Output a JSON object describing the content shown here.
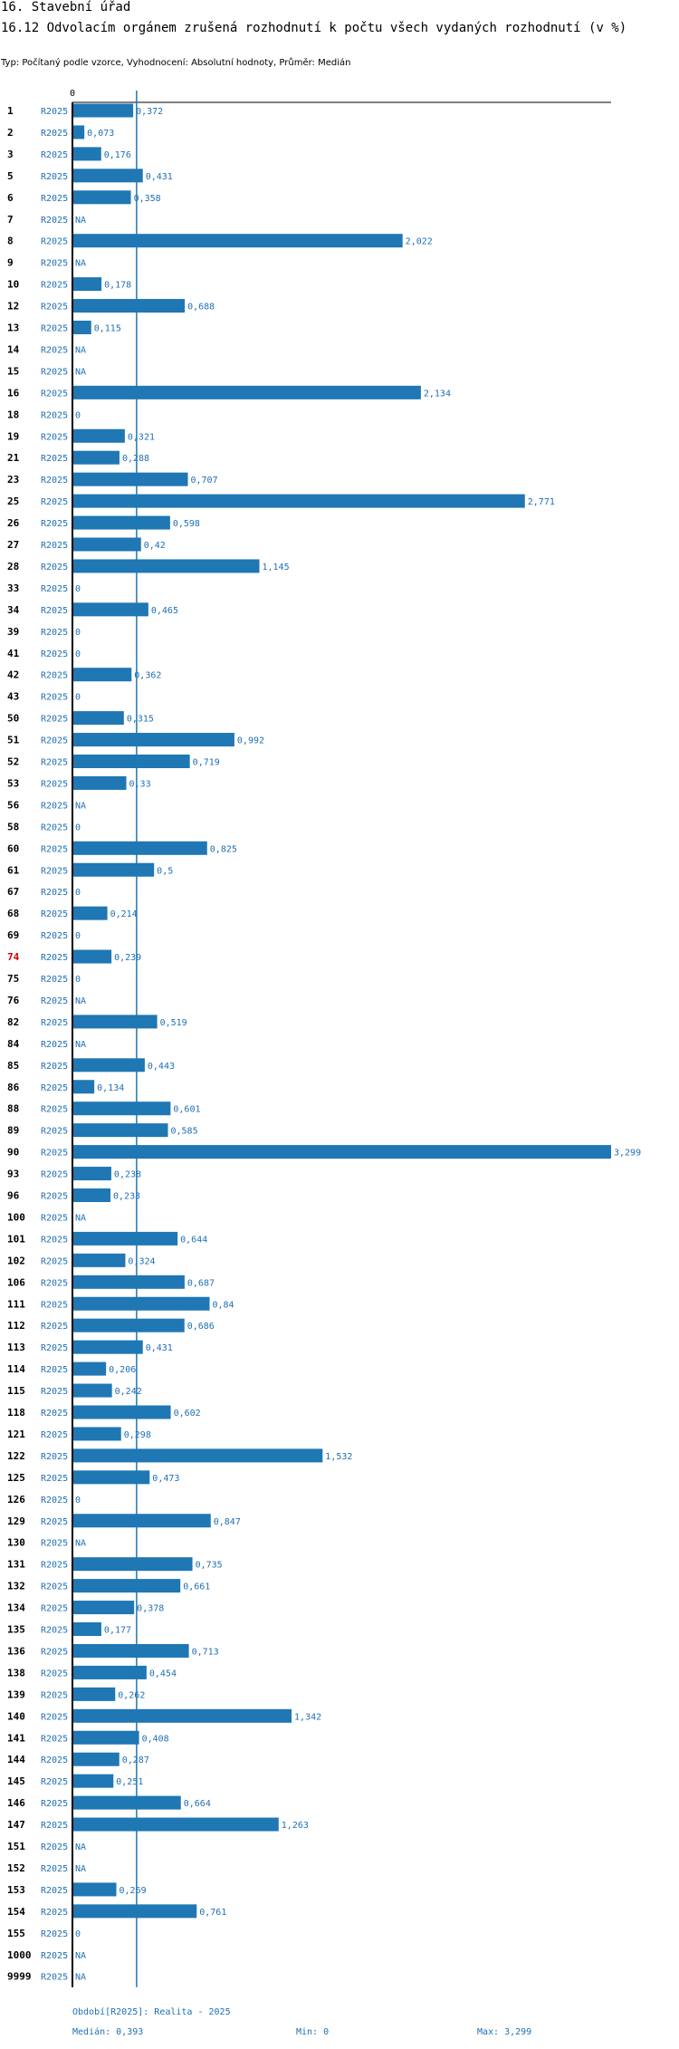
{
  "header": {
    "section_title": "16. Stavební úřad",
    "chart_title": "16.12 Odvolacím orgánem zrušená rozhodnutí k počtu všech vydaných rozhodnutí (v %)",
    "subtitle": "Typ: Počítaný podle vzorce, Vyhodnocení: Absolutní hodnoty, Průměr: Medián"
  },
  "footer": {
    "period": "Období[R2025]: Realita - 2025",
    "median": "Medián: 0,393",
    "min": "Min: 0",
    "max": "Max: 3,299"
  },
  "colors": {
    "bar": "#1f77b4",
    "label": "#1f6fb4",
    "highlight": "#cc0000",
    "axis": "#000000",
    "median_line": "#1f77b4"
  },
  "chart_data": {
    "type": "bar",
    "orientation": "horizontal",
    "title": "16.12 Odvolacím orgánem zrušená rozhodnutí k počtu všech vydaných rozhodnutí (v %)",
    "axis_zero_label": "0",
    "series_name": "R2025",
    "median": 0.393,
    "min": 0,
    "max": 3.299,
    "xlim": [
      0,
      3.299
    ],
    "highlighted_category": "74",
    "rows": [
      {
        "id": "1",
        "value": 0.372,
        "label": "0,372"
      },
      {
        "id": "2",
        "value": 0.073,
        "label": "0,073"
      },
      {
        "id": "3",
        "value": 0.176,
        "label": "0,176"
      },
      {
        "id": "5",
        "value": 0.431,
        "label": "0,431"
      },
      {
        "id": "6",
        "value": 0.358,
        "label": "0,358"
      },
      {
        "id": "7",
        "value": null,
        "label": "NA"
      },
      {
        "id": "8",
        "value": 2.022,
        "label": "2,022"
      },
      {
        "id": "9",
        "value": null,
        "label": "NA"
      },
      {
        "id": "10",
        "value": 0.178,
        "label": "0,178"
      },
      {
        "id": "12",
        "value": 0.688,
        "label": "0,688"
      },
      {
        "id": "13",
        "value": 0.115,
        "label": "0,115"
      },
      {
        "id": "14",
        "value": null,
        "label": "NA"
      },
      {
        "id": "15",
        "value": null,
        "label": "NA"
      },
      {
        "id": "16",
        "value": 2.134,
        "label": "2,134"
      },
      {
        "id": "18",
        "value": 0,
        "label": "0"
      },
      {
        "id": "19",
        "value": 0.321,
        "label": "0,321"
      },
      {
        "id": "21",
        "value": 0.288,
        "label": "0,288"
      },
      {
        "id": "23",
        "value": 0.707,
        "label": "0,707"
      },
      {
        "id": "25",
        "value": 2.771,
        "label": "2,771"
      },
      {
        "id": "26",
        "value": 0.598,
        "label": "0,598"
      },
      {
        "id": "27",
        "value": 0.42,
        "label": "0,42"
      },
      {
        "id": "28",
        "value": 1.145,
        "label": "1,145"
      },
      {
        "id": "33",
        "value": 0,
        "label": "0"
      },
      {
        "id": "34",
        "value": 0.465,
        "label": "0,465"
      },
      {
        "id": "39",
        "value": 0,
        "label": "0"
      },
      {
        "id": "41",
        "value": 0,
        "label": "0"
      },
      {
        "id": "42",
        "value": 0.362,
        "label": "0,362"
      },
      {
        "id": "43",
        "value": 0,
        "label": "0"
      },
      {
        "id": "50",
        "value": 0.315,
        "label": "0,315"
      },
      {
        "id": "51",
        "value": 0.992,
        "label": "0,992"
      },
      {
        "id": "52",
        "value": 0.719,
        "label": "0,719"
      },
      {
        "id": "53",
        "value": 0.33,
        "label": "0,33"
      },
      {
        "id": "56",
        "value": null,
        "label": "NA"
      },
      {
        "id": "58",
        "value": 0,
        "label": "0"
      },
      {
        "id": "60",
        "value": 0.825,
        "label": "0,825"
      },
      {
        "id": "61",
        "value": 0.5,
        "label": "0,5"
      },
      {
        "id": "67",
        "value": 0,
        "label": "0"
      },
      {
        "id": "68",
        "value": 0.214,
        "label": "0,214"
      },
      {
        "id": "69",
        "value": 0,
        "label": "0"
      },
      {
        "id": "74",
        "value": 0.239,
        "label": "0,239"
      },
      {
        "id": "75",
        "value": 0,
        "label": "0"
      },
      {
        "id": "76",
        "value": null,
        "label": "NA"
      },
      {
        "id": "82",
        "value": 0.519,
        "label": "0,519"
      },
      {
        "id": "84",
        "value": null,
        "label": "NA"
      },
      {
        "id": "85",
        "value": 0.443,
        "label": "0,443"
      },
      {
        "id": "86",
        "value": 0.134,
        "label": "0,134"
      },
      {
        "id": "88",
        "value": 0.601,
        "label": "0,601"
      },
      {
        "id": "89",
        "value": 0.585,
        "label": "0,585"
      },
      {
        "id": "90",
        "value": 3.299,
        "label": "3,299"
      },
      {
        "id": "93",
        "value": 0.238,
        "label": "0,238"
      },
      {
        "id": "96",
        "value": 0.233,
        "label": "0,233"
      },
      {
        "id": "100",
        "value": null,
        "label": "NA"
      },
      {
        "id": "101",
        "value": 0.644,
        "label": "0,644"
      },
      {
        "id": "102",
        "value": 0.324,
        "label": "0,324"
      },
      {
        "id": "106",
        "value": 0.687,
        "label": "0,687"
      },
      {
        "id": "111",
        "value": 0.84,
        "label": "0,84"
      },
      {
        "id": "112",
        "value": 0.686,
        "label": "0,686"
      },
      {
        "id": "113",
        "value": 0.431,
        "label": "0,431"
      },
      {
        "id": "114",
        "value": 0.206,
        "label": "0,206"
      },
      {
        "id": "115",
        "value": 0.242,
        "label": "0,242"
      },
      {
        "id": "118",
        "value": 0.602,
        "label": "0,602"
      },
      {
        "id": "121",
        "value": 0.298,
        "label": "0,298"
      },
      {
        "id": "122",
        "value": 1.532,
        "label": "1,532"
      },
      {
        "id": "125",
        "value": 0.473,
        "label": "0,473"
      },
      {
        "id": "126",
        "value": 0,
        "label": "0"
      },
      {
        "id": "129",
        "value": 0.847,
        "label": "0,847"
      },
      {
        "id": "130",
        "value": null,
        "label": "NA"
      },
      {
        "id": "131",
        "value": 0.735,
        "label": "0,735"
      },
      {
        "id": "132",
        "value": 0.661,
        "label": "0,661"
      },
      {
        "id": "134",
        "value": 0.378,
        "label": "0,378"
      },
      {
        "id": "135",
        "value": 0.177,
        "label": "0,177"
      },
      {
        "id": "136",
        "value": 0.713,
        "label": "0,713"
      },
      {
        "id": "138",
        "value": 0.454,
        "label": "0,454"
      },
      {
        "id": "139",
        "value": 0.262,
        "label": "0,262"
      },
      {
        "id": "140",
        "value": 1.342,
        "label": "1,342"
      },
      {
        "id": "141",
        "value": 0.408,
        "label": "0,408"
      },
      {
        "id": "144",
        "value": 0.287,
        "label": "0,287"
      },
      {
        "id": "145",
        "value": 0.251,
        "label": "0,251"
      },
      {
        "id": "146",
        "value": 0.664,
        "label": "0,664"
      },
      {
        "id": "147",
        "value": 1.263,
        "label": "1,263"
      },
      {
        "id": "151",
        "value": null,
        "label": "NA"
      },
      {
        "id": "152",
        "value": null,
        "label": "NA"
      },
      {
        "id": "153",
        "value": 0.269,
        "label": "0,269"
      },
      {
        "id": "154",
        "value": 0.761,
        "label": "0,761"
      },
      {
        "id": "155",
        "value": 0,
        "label": "0"
      },
      {
        "id": "1000",
        "value": null,
        "label": "NA"
      },
      {
        "id": "9999",
        "value": null,
        "label": "NA"
      }
    ]
  }
}
